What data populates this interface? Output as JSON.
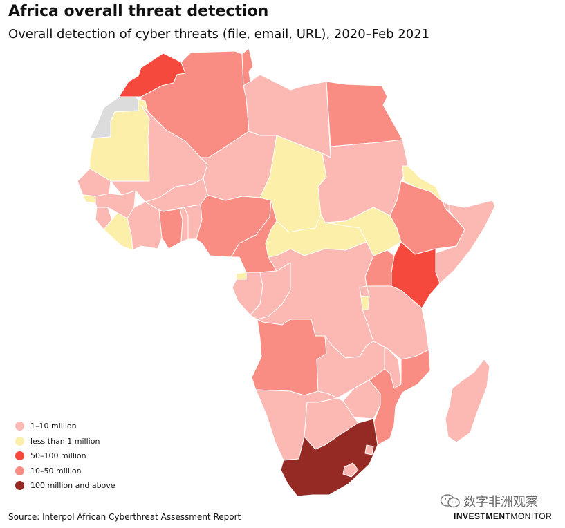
{
  "title": "Africa overall threat detection",
  "subtitle": "Overall detection of cyber threats (file, email, URL), 2020–Feb 2021",
  "legend": [
    {
      "label": "1–10 million",
      "color": "#fcb8b2"
    },
    {
      "label": "less than 1 million",
      "color": "#fbefaa"
    },
    {
      "label": "50–100 million",
      "color": "#f6493d"
    },
    {
      "label": "10–50 million",
      "color": "#f98d83"
    },
    {
      "label": "100 million and above",
      "color": "#952a25"
    }
  ],
  "no_data_color": "#dcdcdc",
  "source": "Source: Interpol African Cyberthreat Assessment Report",
  "watermark": {
    "text": "数字非洲观察",
    "icon": "wechat-icon"
  },
  "brand": {
    "part1": "INVESTMENT",
    "part2": "MONITOR"
  },
  "countries": [
    {
      "name": "Morocco",
      "category": "50–100 million"
    },
    {
      "name": "Western Sahara",
      "category": "no data"
    },
    {
      "name": "Algeria",
      "category": "10–50 million"
    },
    {
      "name": "Tunisia",
      "category": "10–50 million"
    },
    {
      "name": "Libya",
      "category": "1–10 million"
    },
    {
      "name": "Egypt",
      "category": "10–50 million"
    },
    {
      "name": "Mauritania",
      "category": "less than 1 million"
    },
    {
      "name": "Mali",
      "category": "1–10 million"
    },
    {
      "name": "Niger",
      "category": "1–10 million"
    },
    {
      "name": "Chad",
      "category": "less than 1 million"
    },
    {
      "name": "Sudan",
      "category": "1–10 million"
    },
    {
      "name": "Eritrea",
      "category": "less than 1 million"
    },
    {
      "name": "Senegal",
      "category": "1–10 million"
    },
    {
      "name": "Guinea-Bissau",
      "category": "less than 1 million"
    },
    {
      "name": "Guinea",
      "category": "1–10 million"
    },
    {
      "name": "Sierra Leone",
      "category": "1–10 million"
    },
    {
      "name": "Liberia",
      "category": "less than 1 million"
    },
    {
      "name": "Côte d'Ivoire",
      "category": "1–10 million"
    },
    {
      "name": "Burkina Faso",
      "category": "1–10 million"
    },
    {
      "name": "Ghana",
      "category": "10–50 million"
    },
    {
      "name": "Togo",
      "category": "1–10 million"
    },
    {
      "name": "Benin",
      "category": "1–10 million"
    },
    {
      "name": "Nigeria",
      "category": "10–50 million"
    },
    {
      "name": "Cameroon",
      "category": "10–50 million"
    },
    {
      "name": "Central African Republic",
      "category": "less than 1 million"
    },
    {
      "name": "South Sudan",
      "category": "less than 1 million"
    },
    {
      "name": "Ethiopia",
      "category": "10–50 million"
    },
    {
      "name": "Djibouti",
      "category": "1–10 million"
    },
    {
      "name": "Somalia",
      "category": "1–10 million"
    },
    {
      "name": "Kenya",
      "category": "50–100 million"
    },
    {
      "name": "Uganda",
      "category": "10–50 million"
    },
    {
      "name": "Rwanda",
      "category": "1–10 million"
    },
    {
      "name": "Burundi",
      "category": "less than 1 million"
    },
    {
      "name": "Tanzania",
      "category": "1–10 million"
    },
    {
      "name": "Equatorial Guinea",
      "category": "less than 1 million"
    },
    {
      "name": "Gabon",
      "category": "1–10 million"
    },
    {
      "name": "Republic of the Congo",
      "category": "1–10 million"
    },
    {
      "name": "DR Congo",
      "category": "1–10 million"
    },
    {
      "name": "Angola",
      "category": "10–50 million"
    },
    {
      "name": "Zambia",
      "category": "1–10 million"
    },
    {
      "name": "Malawi",
      "category": "1–10 million"
    },
    {
      "name": "Mozambique",
      "category": "10–50 million"
    },
    {
      "name": "Zimbabwe",
      "category": "1–10 million"
    },
    {
      "name": "Namibia",
      "category": "1–10 million"
    },
    {
      "name": "Botswana",
      "category": "1–10 million"
    },
    {
      "name": "South Africa",
      "category": "100 million and above"
    },
    {
      "name": "Lesotho",
      "category": "1–10 million"
    },
    {
      "name": "Eswatini",
      "category": "1–10 million"
    },
    {
      "name": "Madagascar",
      "category": "1–10 million"
    }
  ]
}
